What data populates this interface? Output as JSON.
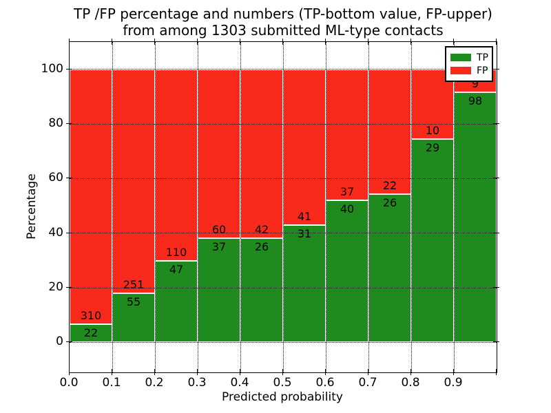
{
  "title": {
    "line1": "TP /FP percentage and numbers (TP-bottom value, FP-upper)",
    "line2": "from among 1303 submitted ML-type contacts"
  },
  "axes": {
    "xlabel": "Predicted probability",
    "ylabel": "Percentage",
    "xtick_labels": [
      "0.0",
      "0.1",
      "0.2",
      "0.3",
      "0.4",
      "0.5",
      "0.6",
      "0.7",
      "0.8",
      "0.9"
    ],
    "xtick_values": [
      0.0,
      0.1,
      0.2,
      0.3,
      0.4,
      0.5,
      0.6,
      0.7,
      0.8,
      0.9
    ],
    "ytick_labels": [
      "0",
      "20",
      "40",
      "60",
      "80",
      "100"
    ],
    "ytick_values": [
      0,
      20,
      40,
      60,
      80,
      100
    ]
  },
  "legend": {
    "items": [
      {
        "label": "TP",
        "color": "#1f8b1f"
      },
      {
        "label": "FP",
        "color": "#f9291c"
      }
    ],
    "position": "upper right"
  },
  "colors": {
    "tp": "#1f8b1f",
    "fp": "#f9291c",
    "grid": "#000000",
    "spine": "#000000",
    "background": "#ffffff",
    "bar_edge": "#ffffff"
  },
  "chart_data": {
    "type": "bar",
    "stacked": true,
    "normalized": "percent",
    "title": "TP /FP percentage and numbers (TP-bottom value, FP-upper) from among 1303 submitted ML-type contacts",
    "xlabel": "Predicted probability",
    "ylabel": "Percentage",
    "categories": [
      "0.0-0.1",
      "0.1-0.2",
      "0.2-0.3",
      "0.3-0.4",
      "0.4-0.5",
      "0.5-0.6",
      "0.6-0.7",
      "0.7-0.8",
      "0.8-0.9",
      "0.9-1.0"
    ],
    "bin_edges": [
      0.0,
      0.1,
      0.2,
      0.3,
      0.4,
      0.5,
      0.6,
      0.7,
      0.8,
      0.9,
      1.0
    ],
    "series": [
      {
        "name": "TP",
        "values": [
          22,
          55,
          47,
          37,
          26,
          31,
          40,
          26,
          29,
          98
        ]
      },
      {
        "name": "FP",
        "values": [
          310,
          251,
          110,
          60,
          42,
          41,
          37,
          22,
          10,
          9
        ]
      }
    ],
    "total_contacts": 1303,
    "xlim": [
      0.0,
      1.0
    ],
    "ylim": [
      -11,
      110
    ],
    "grid": true,
    "legend_position": "upper right"
  }
}
